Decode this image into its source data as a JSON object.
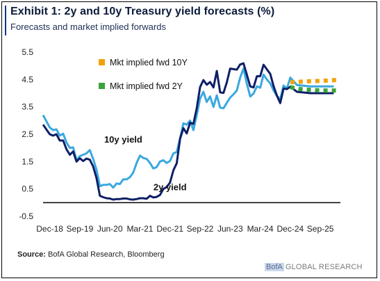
{
  "header": {
    "title": "Exhibit 1: 2y and 10y Treasury yield forecasts (%)",
    "subtitle": "Forecasts and market implied forwards"
  },
  "footer": {
    "source_label": "Source:",
    "source_text": "BofA Global Research, Bloomberg",
    "brand_mark": "BofA",
    "brand_text": "GLOBAL RESEARCH"
  },
  "colors": {
    "y10": "#3aa8df",
    "y2": "#0d1f66",
    "fwd10": "#f2a20c",
    "fwd2": "#3aa43a",
    "axis": "#000000"
  },
  "chart_data": {
    "type": "line",
    "title": "Exhibit 1: 2y and 10y Treasury yield forecasts (%)",
    "subtitle": "Forecasts and market implied forwards",
    "xlabel": "",
    "ylabel": "",
    "ylim": [
      -0.5,
      5.5
    ],
    "yticks": [
      "5.5",
      "4.5",
      "3.5",
      "2.5",
      "1.5",
      "0.5",
      "-0.5"
    ],
    "xticks": [
      {
        "date": "2018-12",
        "label": "Dec-18"
      },
      {
        "date": "2019-09",
        "label": "Sep-19"
      },
      {
        "date": "2020-06",
        "label": "Jun-20"
      },
      {
        "date": "2021-03",
        "label": "Mar-21"
      },
      {
        "date": "2021-12",
        "label": "Dec-21"
      },
      {
        "date": "2022-09",
        "label": "Sep-22"
      },
      {
        "date": "2023-06",
        "label": "Jun-23"
      },
      {
        "date": "2024-03",
        "label": "Mar-24"
      },
      {
        "date": "2024-12",
        "label": "Dec-24"
      },
      {
        "date": "2025-09",
        "label": "Sep-25"
      }
    ],
    "xrange": [
      "2018-10",
      "2026-03"
    ],
    "grid": false,
    "legend_position": "top-center",
    "legend": [
      "Mkt implied fwd 10Y",
      "Mkt implied fwd 2Y"
    ],
    "annotations": [
      {
        "text": "10y yield",
        "date": "2020-10",
        "y": 2.2
      },
      {
        "text": "2y yield",
        "date": "2021-12",
        "y": 0.45
      }
    ],
    "series": [
      {
        "key": "y10",
        "points": [
          [
            "2018-10",
            3.2
          ],
          [
            "2018-12",
            2.75
          ],
          [
            "2019-01",
            2.65
          ],
          [
            "2019-02",
            2.68
          ],
          [
            "2019-03",
            2.45
          ],
          [
            "2019-04",
            2.52
          ],
          [
            "2019-05",
            2.2
          ],
          [
            "2019-06",
            2.0
          ],
          [
            "2019-07",
            2.02
          ],
          [
            "2019-08",
            1.55
          ],
          [
            "2019-09",
            1.7
          ],
          [
            "2019-10",
            1.75
          ],
          [
            "2019-11",
            1.8
          ],
          [
            "2019-12",
            1.92
          ],
          [
            "2020-01",
            1.6
          ],
          [
            "2020-02",
            1.2
          ],
          [
            "2020-03",
            0.6
          ],
          [
            "2020-04",
            0.65
          ],
          [
            "2020-05",
            0.65
          ],
          [
            "2020-06",
            0.68
          ],
          [
            "2020-07",
            0.55
          ],
          [
            "2020-08",
            0.7
          ],
          [
            "2020-09",
            0.68
          ],
          [
            "2020-10",
            0.85
          ],
          [
            "2020-11",
            0.85
          ],
          [
            "2020-12",
            0.93
          ],
          [
            "2021-01",
            1.1
          ],
          [
            "2021-02",
            1.45
          ],
          [
            "2021-03",
            1.72
          ],
          [
            "2021-04",
            1.63
          ],
          [
            "2021-05",
            1.6
          ],
          [
            "2021-06",
            1.45
          ],
          [
            "2021-07",
            1.25
          ],
          [
            "2021-08",
            1.3
          ],
          [
            "2021-09",
            1.5
          ],
          [
            "2021-10",
            1.55
          ],
          [
            "2021-11",
            1.45
          ],
          [
            "2021-12",
            1.52
          ],
          [
            "2022-01",
            1.8
          ],
          [
            "2022-02",
            1.85
          ],
          [
            "2022-03",
            2.35
          ],
          [
            "2022-04",
            2.9
          ],
          [
            "2022-05",
            2.85
          ],
          [
            "2022-06",
            3.0
          ],
          [
            "2022-07",
            2.65
          ],
          [
            "2022-08",
            3.2
          ],
          [
            "2022-09",
            3.8
          ],
          [
            "2022-10",
            4.05
          ],
          [
            "2022-11",
            3.68
          ],
          [
            "2022-12",
            3.88
          ],
          [
            "2023-01",
            3.5
          ],
          [
            "2023-02",
            3.92
          ],
          [
            "2023-03",
            3.47
          ],
          [
            "2023-04",
            3.45
          ],
          [
            "2023-05",
            3.65
          ],
          [
            "2023-06",
            3.84
          ],
          [
            "2023-07",
            3.96
          ],
          [
            "2023-08",
            4.1
          ],
          [
            "2023-09",
            4.57
          ],
          [
            "2023-10",
            4.9
          ],
          [
            "2023-11",
            4.35
          ],
          [
            "2023-12",
            3.88
          ],
          [
            "2024-01",
            3.99
          ],
          [
            "2024-02",
            4.25
          ],
          [
            "2024-03",
            4.2
          ],
          [
            "2024-04",
            4.68
          ],
          [
            "2024-05",
            4.5
          ],
          [
            "2024-06",
            4.36
          ],
          [
            "2024-07",
            4.1
          ],
          [
            "2024-08",
            3.9
          ],
          [
            "2024-09",
            3.78
          ],
          [
            "2024-10",
            4.28
          ],
          [
            "2024-11",
            4.18
          ],
          [
            "2024-12",
            4.57
          ],
          [
            "2025-02",
            4.3
          ],
          [
            "2025-06",
            4.25
          ],
          [
            "2026-01",
            4.25
          ]
        ]
      },
      {
        "key": "y2",
        "points": [
          [
            "2018-10",
            2.85
          ],
          [
            "2018-12",
            2.5
          ],
          [
            "2019-01",
            2.45
          ],
          [
            "2019-02",
            2.5
          ],
          [
            "2019-03",
            2.27
          ],
          [
            "2019-04",
            2.27
          ],
          [
            "2019-05",
            1.95
          ],
          [
            "2019-06",
            1.75
          ],
          [
            "2019-07",
            1.87
          ],
          [
            "2019-08",
            1.5
          ],
          [
            "2019-09",
            1.62
          ],
          [
            "2019-10",
            1.52
          ],
          [
            "2019-11",
            1.61
          ],
          [
            "2019-12",
            1.57
          ],
          [
            "2020-01",
            1.32
          ],
          [
            "2020-02",
            0.9
          ],
          [
            "2020-03",
            0.25
          ],
          [
            "2020-04",
            0.2
          ],
          [
            "2020-05",
            0.16
          ],
          [
            "2020-06",
            0.15
          ],
          [
            "2020-07",
            0.11
          ],
          [
            "2020-08",
            0.13
          ],
          [
            "2020-09",
            0.13
          ],
          [
            "2020-10",
            0.15
          ],
          [
            "2020-11",
            0.15
          ],
          [
            "2020-12",
            0.12
          ],
          [
            "2021-01",
            0.11
          ],
          [
            "2021-02",
            0.13
          ],
          [
            "2021-03",
            0.16
          ],
          [
            "2021-04",
            0.16
          ],
          [
            "2021-05",
            0.14
          ],
          [
            "2021-06",
            0.25
          ],
          [
            "2021-07",
            0.19
          ],
          [
            "2021-08",
            0.21
          ],
          [
            "2021-09",
            0.28
          ],
          [
            "2021-10",
            0.5
          ],
          [
            "2021-11",
            0.57
          ],
          [
            "2021-12",
            0.73
          ],
          [
            "2022-01",
            1.18
          ],
          [
            "2022-02",
            1.44
          ],
          [
            "2022-03",
            2.33
          ],
          [
            "2022-04",
            2.72
          ],
          [
            "2022-05",
            2.53
          ],
          [
            "2022-06",
            2.92
          ],
          [
            "2022-07",
            2.88
          ],
          [
            "2022-08",
            3.45
          ],
          [
            "2022-09",
            4.22
          ],
          [
            "2022-10",
            4.48
          ],
          [
            "2022-11",
            4.31
          ],
          [
            "2022-12",
            4.41
          ],
          [
            "2023-01",
            4.21
          ],
          [
            "2023-02",
            4.81
          ],
          [
            "2023-03",
            4.03
          ],
          [
            "2023-04",
            4.01
          ],
          [
            "2023-05",
            4.4
          ],
          [
            "2023-06",
            4.9
          ],
          [
            "2023-07",
            4.88
          ],
          [
            "2023-08",
            4.86
          ],
          [
            "2023-09",
            5.05
          ],
          [
            "2023-10",
            5.09
          ],
          [
            "2023-11",
            4.68
          ],
          [
            "2023-12",
            4.25
          ],
          [
            "2024-01",
            4.21
          ],
          [
            "2024-02",
            4.62
          ],
          [
            "2024-03",
            4.62
          ],
          [
            "2024-04",
            5.04
          ],
          [
            "2024-05",
            4.87
          ],
          [
            "2024-06",
            4.71
          ],
          [
            "2024-07",
            4.26
          ],
          [
            "2024-08",
            3.91
          ],
          [
            "2024-09",
            3.64
          ],
          [
            "2024-10",
            4.17
          ],
          [
            "2024-11",
            4.15
          ],
          [
            "2024-12",
            4.24
          ],
          [
            "2025-02",
            4.05
          ],
          [
            "2025-06",
            4.0
          ],
          [
            "2026-01",
            4.0
          ]
        ]
      },
      {
        "key": "fwd10",
        "name": "Mkt implied fwd 10Y",
        "points": [
          [
            "2024-12",
            4.4
          ],
          [
            "2025-03",
            4.42
          ],
          [
            "2025-06",
            4.44
          ],
          [
            "2025-09",
            4.45
          ],
          [
            "2025-12",
            4.47
          ],
          [
            "2026-02",
            4.48
          ]
        ]
      },
      {
        "key": "fwd2",
        "name": "Mkt implied fwd 2Y",
        "points": [
          [
            "2024-12",
            4.22
          ],
          [
            "2025-03",
            4.15
          ],
          [
            "2025-06",
            4.12
          ],
          [
            "2025-09",
            4.1
          ],
          [
            "2025-12",
            4.1
          ],
          [
            "2026-02",
            4.1
          ]
        ]
      }
    ]
  }
}
